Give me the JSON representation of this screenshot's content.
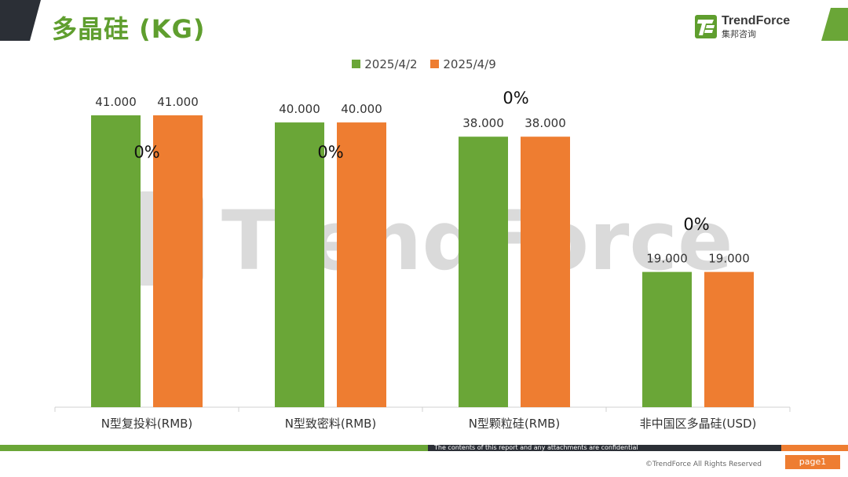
{
  "page": {
    "title": "多晶硅 (KG)",
    "logo_name": "TrendForce",
    "logo_sub": "集邦咨询",
    "watermark": "TrendForce",
    "footer_disclaimer": "The contents of this report and any attachments are confidential",
    "copyright": "©TrendForce All Rights Reserved",
    "page_label": "page1",
    "colors": {
      "green": "#6aa637",
      "orange": "#ee7d31",
      "title_green": "#5f9e2e",
      "dark": "#2b2f36"
    }
  },
  "chart_data": {
    "type": "bar",
    "title": "多晶硅 (KG)",
    "categories": [
      "N型复投料(RMB)",
      "N型致密料(RMB)",
      "N型颗粒硅(RMB)",
      "非中国区多晶硅(USD)"
    ],
    "series": [
      {
        "name": "2025/4/2",
        "values": [
          41.0,
          40.0,
          38.0,
          19.0
        ],
        "color": "#6aa637"
      },
      {
        "name": "2025/4/9",
        "values": [
          41.0,
          40.0,
          38.0,
          19.0
        ],
        "color": "#ee7d31"
      }
    ],
    "value_labels": [
      [
        "41.000",
        "40.000",
        "38.000",
        "19.000"
      ],
      [
        "41.000",
        "40.000",
        "38.000",
        "19.000"
      ]
    ],
    "change_labels": [
      "0%",
      "0%",
      "0%",
      "0%"
    ],
    "ylim": [
      0,
      45
    ],
    "legend_position": "top-center",
    "grid": false
  }
}
